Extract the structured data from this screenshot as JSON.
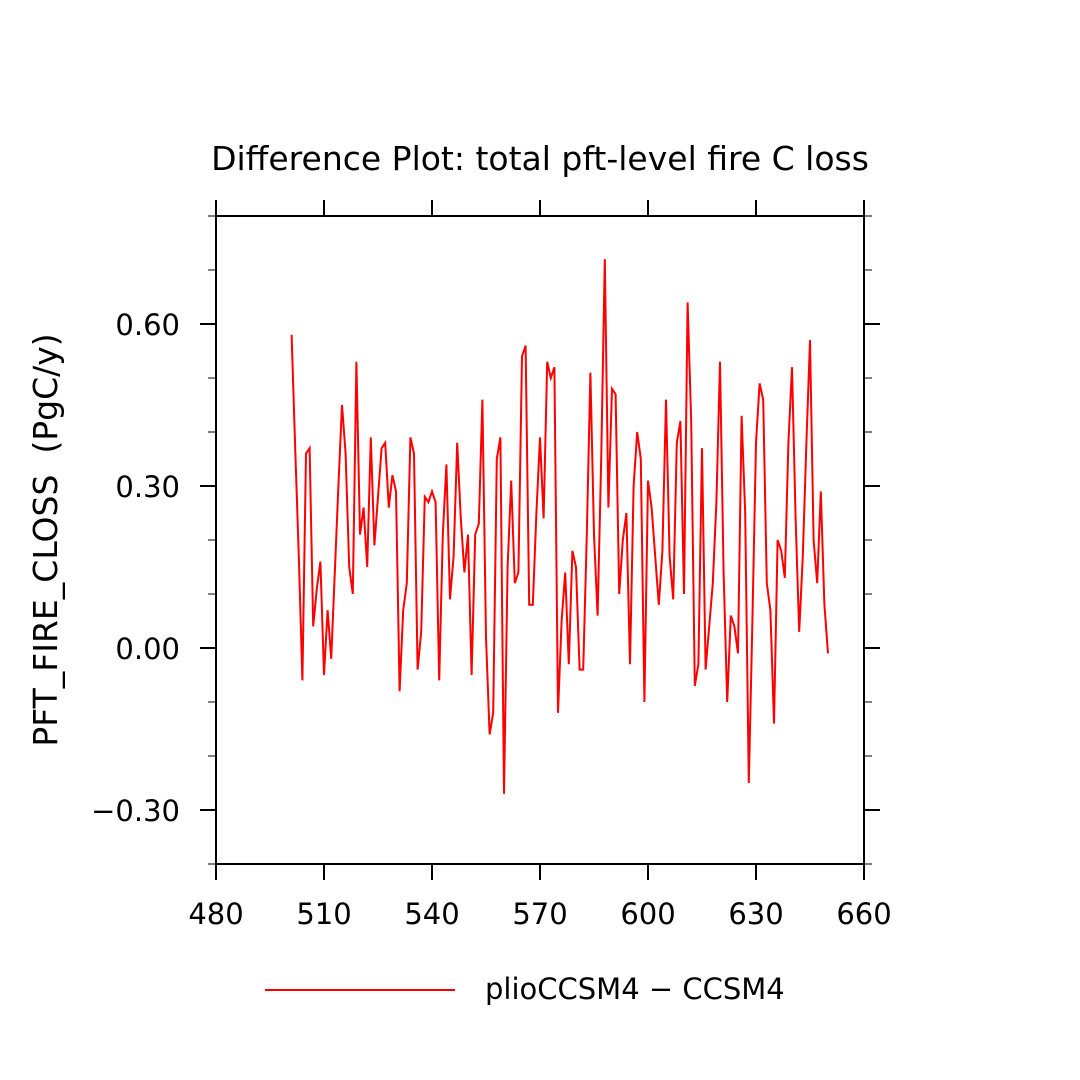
{
  "chart_data": {
    "type": "line",
    "title": "Difference Plot: total pft-level fire C loss",
    "xlabel": "",
    "ylabel": "PFT_FIRE_CLOSS  (PgC/y)",
    "xlim": [
      480,
      660
    ],
    "ylim": [
      -0.4,
      0.8
    ],
    "x_ticks": [
      480,
      510,
      540,
      570,
      600,
      630,
      660
    ],
    "x_tick_labels": [
      "480",
      "510",
      "540",
      "570",
      "600",
      "630",
      "660"
    ],
    "y_ticks": [
      -0.3,
      0.0,
      0.3,
      0.6
    ],
    "y_tick_labels": [
      "−0.30",
      "0.00",
      "0.30",
      "0.60"
    ],
    "y_minor_step": 0.1,
    "grid": false,
    "legend_position": "bottom",
    "series": [
      {
        "name": "plioCCSM4 − CCSM4",
        "color": "#ff0000",
        "x_start": 501,
        "x_step": 1,
        "values": [
          0.58,
          0.37,
          0.17,
          -0.06,
          0.36,
          0.37,
          0.04,
          0.11,
          0.16,
          -0.05,
          0.07,
          -0.02,
          0.14,
          0.3,
          0.45,
          0.36,
          0.15,
          0.1,
          0.53,
          0.21,
          0.26,
          0.15,
          0.39,
          0.19,
          0.28,
          0.37,
          0.38,
          0.26,
          0.32,
          0.29,
          -0.08,
          0.07,
          0.12,
          0.39,
          0.36,
          -0.04,
          0.03,
          0.28,
          0.27,
          0.29,
          0.27,
          -0.06,
          0.21,
          0.34,
          0.09,
          0.17,
          0.38,
          0.24,
          0.14,
          0.21,
          -0.05,
          0.21,
          0.23,
          0.46,
          0.02,
          -0.16,
          -0.12,
          0.35,
          0.39,
          -0.27,
          0.15,
          0.31,
          0.12,
          0.14,
          0.54,
          0.56,
          0.08,
          0.08,
          0.25,
          0.39,
          0.24,
          0.53,
          0.5,
          0.52,
          -0.12,
          0.05,
          0.14,
          -0.03,
          0.18,
          0.15,
          -0.04,
          -0.04,
          0.21,
          0.51,
          0.21,
          0.06,
          0.35,
          0.72,
          0.26,
          0.48,
          0.47,
          0.1,
          0.2,
          0.25,
          -0.03,
          0.3,
          0.4,
          0.35,
          -0.1,
          0.31,
          0.26,
          0.17,
          0.08,
          0.18,
          0.46,
          0.17,
          0.09,
          0.38,
          0.42,
          0.1,
          0.64,
          0.42,
          -0.07,
          -0.03,
          0.37,
          -0.04,
          0.04,
          0.12,
          0.27,
          0.53,
          0.14,
          -0.1,
          0.06,
          0.04,
          -0.01,
          0.43,
          0.25,
          -0.25,
          0.05,
          0.38,
          0.49,
          0.46,
          0.12,
          0.07,
          -0.14,
          0.2,
          0.18,
          0.13,
          0.38,
          0.52,
          0.24,
          0.03,
          0.17,
          0.38,
          0.57,
          0.2,
          0.12,
          0.29,
          0.08,
          -0.01
        ]
      }
    ]
  }
}
